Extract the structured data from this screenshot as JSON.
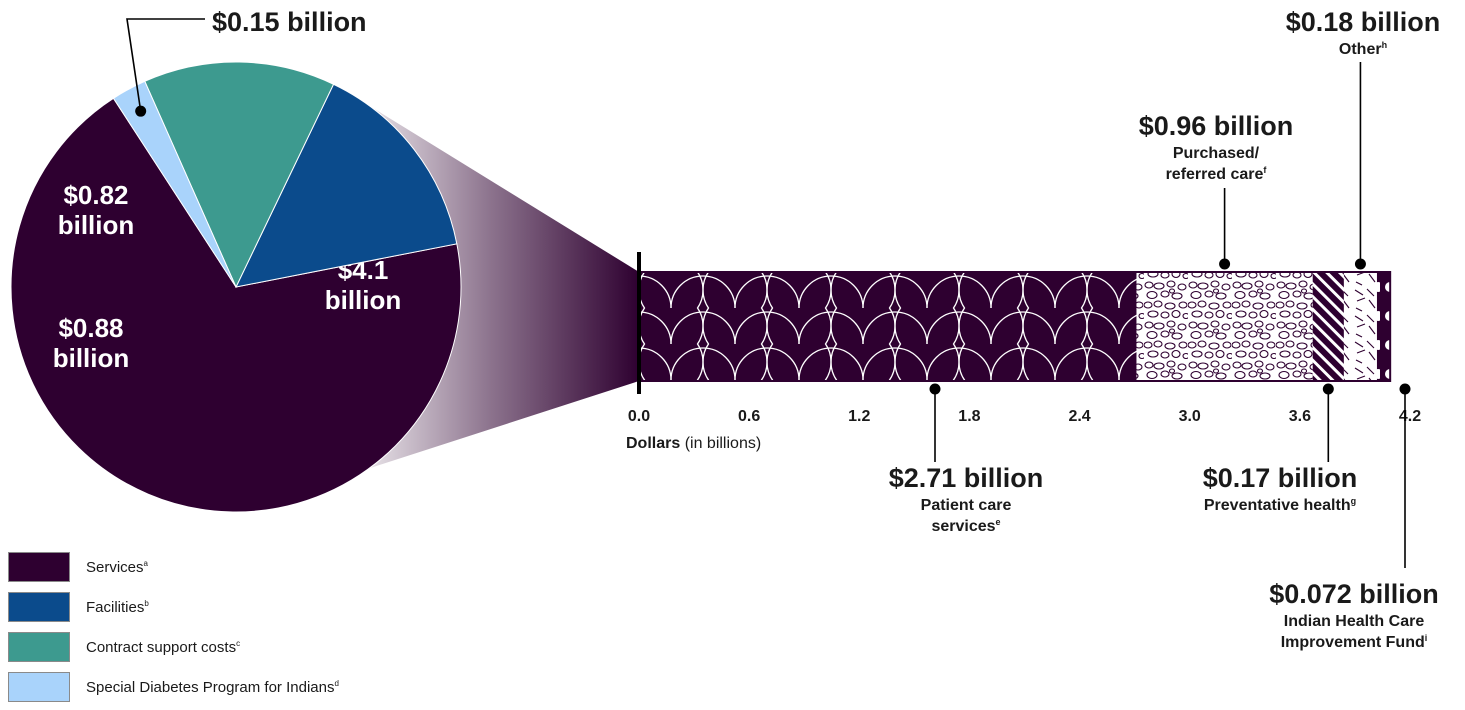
{
  "chart_data": [
    {
      "type": "pie",
      "slices": [
        {
          "name": "Services",
          "footnote": "a",
          "value": 4.1,
          "label": "$4.1 billion",
          "color": "#2e0030"
        },
        {
          "name": "Facilities",
          "footnote": "b",
          "value": 0.88,
          "label": "$0.88 billion",
          "color": "#0b4b8c"
        },
        {
          "name": "Contract support costs",
          "footnote": "c",
          "value": 0.82,
          "label": "$0.82 billion",
          "color": "#3d9a8f"
        },
        {
          "name": "Special Diabetes Program for Indians",
          "footnote": "d",
          "value": 0.15,
          "label": "$0.15 billion",
          "color": "#a9d3fb"
        }
      ],
      "legend_position": "bottom-left"
    },
    {
      "type": "bar",
      "orientation": "horizontal-stacked",
      "xlabel": "Dollars",
      "xlabel_unit": "(in billions)",
      "xlim": [
        0,
        4.2
      ],
      "ticks": [
        "0.0",
        "0.6",
        "1.2",
        "1.8",
        "2.4",
        "3.0",
        "3.6",
        "4.2"
      ],
      "segments": [
        {
          "name": "Patient care services",
          "footnote": "e",
          "value": 2.71,
          "value_label": "$2.71 billion",
          "lines": [
            "Patient care",
            "services"
          ]
        },
        {
          "name": "Purchased/referred care",
          "footnote": "f",
          "value": 0.96,
          "value_label": "$0.96 billion",
          "lines": [
            "Purchased/",
            "referred care"
          ]
        },
        {
          "name": "Preventative health",
          "footnote": "g",
          "value": 0.17,
          "value_label": "$0.17 billion",
          "lines": [
            "Preventative health"
          ]
        },
        {
          "name": "Other",
          "footnote": "h",
          "value": 0.18,
          "value_label": "$0.18 billion",
          "lines": [
            "Other"
          ]
        },
        {
          "name": "Indian Health Care Improvement Fund",
          "footnote": "i",
          "value": 0.072,
          "value_label": "$0.072 billion",
          "lines": [
            "Indian Health Care",
            "Improvement Fund"
          ]
        }
      ]
    }
  ],
  "colors": {
    "dark_purple": "#2e0030",
    "text": "#1a1a1a"
  }
}
